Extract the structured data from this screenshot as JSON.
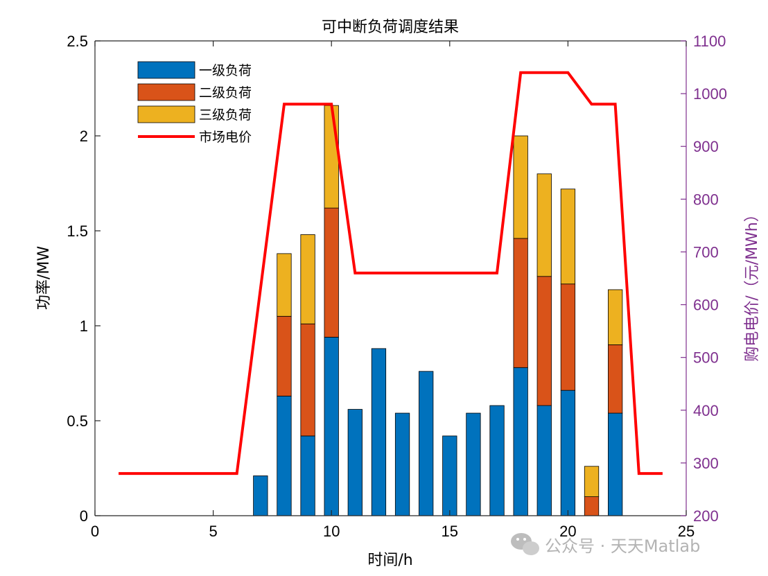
{
  "chart_data": {
    "type": "bar",
    "title": "可中断负荷调度结果",
    "xlabel": "时间/h",
    "ylabel": "功率/MW",
    "y2label": "购电电价/（元/MWh）",
    "xlim": [
      0,
      25
    ],
    "ylim": [
      0,
      2.5
    ],
    "y2lim": [
      200,
      1100
    ],
    "xticks": [
      "0",
      "5",
      "10",
      "15",
      "20",
      "25"
    ],
    "yticks": [
      "0",
      "0.5",
      "1",
      "1.5",
      "2",
      "2.5"
    ],
    "y2ticks": [
      "200",
      "300",
      "400",
      "500",
      "600",
      "700",
      "800",
      "900",
      "1000",
      "1100"
    ],
    "x": [
      7,
      8,
      9,
      10,
      11,
      12,
      13,
      14,
      15,
      16,
      17,
      18,
      19,
      20,
      21,
      22
    ],
    "series": [
      {
        "name": "一级负荷",
        "color": "#0072BD",
        "values": [
          0.21,
          0.63,
          0.42,
          0.94,
          0.56,
          0.88,
          0.54,
          0.76,
          0.42,
          0.54,
          0.58,
          0.78,
          0.58,
          0.66,
          0.0,
          0.54
        ]
      },
      {
        "name": "二级负荷",
        "color": "#D95319",
        "values": [
          0,
          0.42,
          0.59,
          0.68,
          0,
          0,
          0,
          0,
          0,
          0,
          0,
          0.68,
          0.68,
          0.56,
          0.1,
          0.36
        ]
      },
      {
        "name": "三级负荷",
        "color": "#EDB120",
        "values": [
          0,
          0.33,
          0.47,
          0.54,
          0,
          0,
          0,
          0,
          0,
          0,
          0,
          0.54,
          0.54,
          0.5,
          0.16,
          0.29
        ]
      }
    ],
    "line_series": {
      "name": "市场电价",
      "color": "#FF0000",
      "axis": "right",
      "x": [
        1,
        2,
        3,
        4,
        5,
        6,
        7,
        8,
        9,
        10,
        11,
        12,
        13,
        14,
        15,
        16,
        17,
        18,
        19,
        20,
        21,
        22,
        23,
        24
      ],
      "y": [
        280,
        280,
        280,
        280,
        280,
        280,
        630,
        980,
        980,
        980,
        660,
        660,
        660,
        660,
        660,
        660,
        660,
        1040,
        1040,
        1040,
        980,
        980,
        280,
        280
      ]
    },
    "legend_position": "top-left",
    "grid": false
  },
  "watermark": "公众号 · 天天Matlab",
  "colors": {
    "right_axis": "#7E2F8E",
    "bar_edge": "#000000"
  }
}
